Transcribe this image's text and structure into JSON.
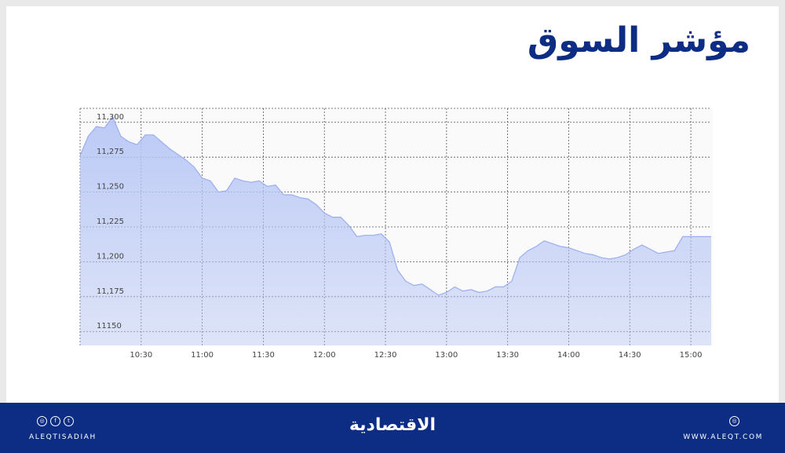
{
  "header": {
    "title": "مؤشر السوق"
  },
  "chart_data": {
    "type": "area",
    "ylim": [
      11140,
      11310
    ],
    "y_ticks": [
      {
        "value": 11300,
        "label": "11,300"
      },
      {
        "value": 11275,
        "label": "11,275"
      },
      {
        "value": 11250,
        "label": "11,250"
      },
      {
        "value": 11225,
        "label": "11,225"
      },
      {
        "value": 11200,
        "label": "11,200"
      },
      {
        "value": 11175,
        "label": "11,175"
      },
      {
        "value": 11150,
        "label": "11150"
      }
    ],
    "x_ticks": [
      "10:30",
      "11:00",
      "11:30",
      "12:00",
      "12:30",
      "13:00",
      "13:30",
      "14:00",
      "14:30",
      "15:00"
    ],
    "grid": true,
    "fill_color": "#b4c4f5",
    "line_color": "#9aaef0",
    "series": [
      {
        "x": [
          "10:00",
          "10:04",
          "10:08",
          "10:12",
          "10:16",
          "10:20",
          "10:24",
          "10:28",
          "10:32",
          "10:36",
          "10:40",
          "10:44",
          "10:48",
          "10:52",
          "10:56",
          "11:00",
          "11:04",
          "11:08",
          "11:12",
          "11:16",
          "11:20",
          "11:24",
          "11:28",
          "11:32",
          "11:36",
          "11:40",
          "11:44",
          "11:48",
          "11:52",
          "11:56",
          "12:00",
          "12:04",
          "12:08",
          "12:12",
          "12:16",
          "12:20",
          "12:24",
          "12:28",
          "12:32",
          "12:36",
          "12:40",
          "12:44",
          "12:48",
          "12:52",
          "12:56",
          "13:00",
          "13:04",
          "13:08",
          "13:12",
          "13:16",
          "13:20",
          "13:24",
          "13:28",
          "13:32",
          "13:36",
          "13:40",
          "13:44",
          "13:48",
          "13:52",
          "13:56",
          "14:00",
          "14:04",
          "14:08",
          "14:12",
          "14:16",
          "14:20",
          "14:24",
          "14:28",
          "14:32",
          "14:36",
          "14:40",
          "14:44",
          "14:48",
          "14:52",
          "14:56",
          "15:00",
          "15:04",
          "15:08",
          "15:10"
        ],
        "values": [
          11276,
          11290,
          11297,
          11296,
          11304,
          11290,
          11286,
          11284,
          11291,
          11291,
          11286,
          11281,
          11277,
          11273,
          11268,
          11260,
          11258,
          11250,
          11251,
          11260,
          11258,
          11257,
          11258,
          11254,
          11255,
          11248,
          11248,
          11246,
          11245,
          11241,
          11235,
          11232,
          11232,
          11226,
          11218,
          11219,
          11219,
          11220,
          11214,
          11194,
          11186,
          11183,
          11184,
          11180,
          11176,
          11178,
          11182,
          11179,
          11180,
          11178,
          11179,
          11182,
          11182,
          11186,
          11203,
          11208,
          11211,
          11215,
          11213,
          11211,
          11210,
          11208,
          11206,
          11205,
          11203,
          11202,
          11203,
          11205,
          11209,
          11212,
          11209,
          11206,
          11207,
          11208,
          11218,
          11218,
          11218,
          11218,
          11218
        ]
      }
    ]
  },
  "footer": {
    "handle": "ALEQTISADIAH",
    "logo": "الاقتصادية",
    "website": "WWW.ALEQT.COM",
    "social_icons": [
      "instagram-icon",
      "facebook-icon",
      "twitter-icon"
    ],
    "background": "#0c2d83"
  }
}
